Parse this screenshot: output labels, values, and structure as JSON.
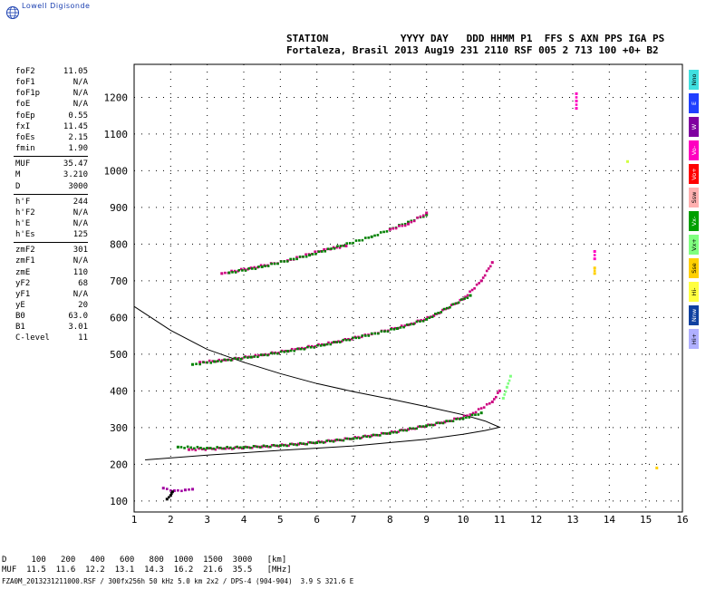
{
  "brand": {
    "name": "Lowell Digisonde"
  },
  "header": {
    "line1": "STATION            YYYY DAY   DDD HHMM P1  FFS S AXN PPS IGA PS",
    "line2": "Fortaleza, Brasil 2013 Aug19 231 2110 RSF 005 2 713 100 +0+ B2"
  },
  "params_group1": [
    {
      "k": "foF2",
      "v": "11.05"
    },
    {
      "k": "foF1",
      "v": "N/A"
    },
    {
      "k": "foF1p",
      "v": "N/A"
    },
    {
      "k": "foE",
      "v": "N/A"
    },
    {
      "k": "foEp",
      "v": "0.55"
    },
    {
      "k": "fxI",
      "v": "11.45"
    },
    {
      "k": "foEs",
      "v": "2.15"
    },
    {
      "k": "fmin",
      "v": "1.90"
    }
  ],
  "params_group2": [
    {
      "k": "MUF",
      "v": "35.47"
    },
    {
      "k": "M",
      "v": "3.210"
    },
    {
      "k": "D",
      "v": "3000"
    }
  ],
  "params_group3": [
    {
      "k": "h'F",
      "v": "244"
    },
    {
      "k": "h'F2",
      "v": "N/A"
    },
    {
      "k": "h'E",
      "v": "N/A"
    },
    {
      "k": "h'Es",
      "v": "125"
    }
  ],
  "params_group4": [
    {
      "k": "zmF2",
      "v": "301"
    },
    {
      "k": "zmF1",
      "v": "N/A"
    },
    {
      "k": "zmE",
      "v": "110"
    },
    {
      "k": "yF2",
      "v": "68"
    },
    {
      "k": "yF1",
      "v": "N/A"
    },
    {
      "k": "yE",
      "v": "20"
    },
    {
      "k": "B0",
      "v": "63.0"
    },
    {
      "k": "B1",
      "v": "3.01"
    },
    {
      "k": "C-level",
      "v": "11"
    }
  ],
  "legend": [
    {
      "label": "Nno",
      "color": "#40e0e0"
    },
    {
      "label": "E",
      "color": "#2040ff"
    },
    {
      "label": "W",
      "color": "#8000a0"
    },
    {
      "label": "Vo-",
      "color": "#ff00c0"
    },
    {
      "label": "Vo+",
      "color": "#ff0000"
    },
    {
      "label": "Ssw",
      "color": "#ffb0b0"
    },
    {
      "label": "Vx-",
      "color": "#00a000"
    },
    {
      "label": "Vx+",
      "color": "#80ff80"
    },
    {
      "label": "Sse",
      "color": "#ffd000"
    },
    {
      "label": "Hi-",
      "color": "#ffff40"
    },
    {
      "label": "Nnw",
      "color": "#1040a0"
    },
    {
      "label": "Hi+",
      "color": "#b0b0ff"
    }
  ],
  "footer": {
    "d_line": "D     100   200   400   600   800  1000  1500  3000   [km]",
    "muf_line": "MUF  11.5  11.6  12.2  13.1  14.3  16.2  21.6  35.5   [MHz]",
    "file_line": "FZA0M_2013231211000.RSF / 300fx256h 50 kHz 5.0 km 2x2 / DPS-4 (904-904)  3.9 S 321.6 E"
  },
  "chart_data": {
    "type": "scatter",
    "xlim": [
      1,
      16
    ],
    "ylim": [
      70,
      1290
    ],
    "x_ticks": [
      1,
      2,
      3,
      4,
      5,
      6,
      7,
      8,
      9,
      10,
      11,
      12,
      13,
      14,
      15,
      16
    ],
    "y_ticks": [
      100,
      200,
      300,
      400,
      500,
      600,
      700,
      800,
      900,
      1000,
      1100,
      1200
    ],
    "grid": true,
    "series": [
      {
        "color": "#cc0080",
        "points": [
          [
            2.5,
            240
          ],
          [
            3.5,
            243
          ],
          [
            4.5,
            248
          ],
          [
            5.5,
            255
          ],
          [
            6.5,
            265
          ],
          [
            7.5,
            278
          ],
          [
            8.5,
            295
          ],
          [
            9.5,
            315
          ],
          [
            10.2,
            335
          ],
          [
            10.8,
            370
          ],
          [
            11.0,
            400
          ]
        ]
      },
      {
        "color": "#008000",
        "points": [
          [
            2.2,
            247
          ],
          [
            3.0,
            244
          ],
          [
            4.0,
            246
          ],
          [
            5.0,
            251
          ],
          [
            6.0,
            259
          ],
          [
            7.0,
            270
          ],
          [
            8.0,
            285
          ],
          [
            9.0,
            305
          ],
          [
            10.0,
            325
          ],
          [
            10.5,
            340
          ]
        ]
      },
      {
        "color": "#cc0080",
        "points": [
          [
            2.8,
            478
          ],
          [
            3.5,
            484
          ],
          [
            4.5,
            498
          ],
          [
            5.5,
            515
          ],
          [
            6.5,
            533
          ],
          [
            7.5,
            555
          ],
          [
            8.5,
            580
          ],
          [
            9.2,
            605
          ],
          [
            10.0,
            650
          ],
          [
            10.5,
            700
          ],
          [
            10.8,
            750
          ]
        ]
      },
      {
        "color": "#008000",
        "points": [
          [
            2.6,
            472
          ],
          [
            3.2,
            480
          ],
          [
            4.2,
            492
          ],
          [
            5.2,
            508
          ],
          [
            6.2,
            525
          ],
          [
            8.2,
            570
          ],
          [
            9.0,
            595
          ],
          [
            10.2,
            660
          ]
        ]
      },
      {
        "color": "#cc0080",
        "points": [
          [
            3.4,
            720
          ],
          [
            4.2,
            735
          ],
          [
            5.2,
            755
          ],
          [
            6.2,
            785
          ],
          [
            6.8,
            795
          ]
        ]
      },
      {
        "color": "#008000",
        "points": [
          [
            3.6,
            722
          ],
          [
            4.5,
            738
          ],
          [
            5.8,
            770
          ],
          [
            7.5,
            820
          ],
          [
            8.5,
            860
          ],
          [
            9.0,
            880
          ]
        ]
      },
      {
        "color": "#cc0080",
        "points": [
          [
            8.0,
            840
          ],
          [
            8.5,
            855
          ],
          [
            9.0,
            885
          ]
        ]
      },
      {
        "color": "#a000a0",
        "points": [
          [
            1.8,
            135
          ],
          [
            2.1,
            128
          ],
          [
            2.4,
            130
          ],
          [
            2.6,
            132
          ]
        ]
      },
      {
        "color": "#000000",
        "points": [
          [
            1.9,
            105
          ],
          [
            2.0,
            115
          ],
          [
            2.05,
            125
          ]
        ]
      },
      {
        "color": "#ff00c0",
        "points": [
          [
            13.1,
            1170
          ],
          [
            13.1,
            1190
          ],
          [
            13.1,
            1210
          ],
          [
            13.6,
            760
          ],
          [
            13.6,
            780
          ]
        ]
      },
      {
        "color": "#ffd000",
        "points": [
          [
            13.6,
            720
          ],
          [
            13.6,
            735
          ],
          [
            15.3,
            190
          ]
        ]
      },
      {
        "color": "#d0ff40",
        "points": [
          [
            14.5,
            1025
          ]
        ]
      },
      {
        "color": "#80ff80",
        "points": [
          [
            11.1,
            380
          ],
          [
            11.2,
            410
          ],
          [
            11.3,
            440
          ]
        ]
      }
    ],
    "profile": [
      [
        1.3,
        212
      ],
      [
        3.0,
        225
      ],
      [
        5.0,
        238
      ],
      [
        7.0,
        250
      ],
      [
        9.0,
        268
      ],
      [
        10.0,
        282
      ],
      [
        10.6,
        292
      ],
      [
        11.0,
        301
      ],
      [
        10.6,
        318
      ],
      [
        10.0,
        335
      ],
      [
        9.0,
        357
      ],
      [
        8.0,
        378
      ],
      [
        7.0,
        398
      ],
      [
        6.0,
        420
      ],
      [
        5.0,
        447
      ],
      [
        4.0,
        478
      ],
      [
        3.0,
        513
      ],
      [
        2.0,
        565
      ],
      [
        1.0,
        630
      ]
    ]
  }
}
